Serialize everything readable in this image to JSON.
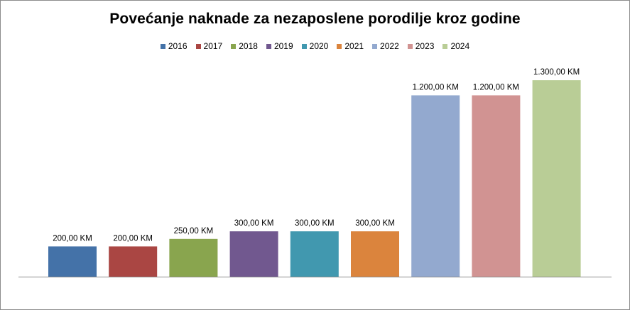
{
  "chart_data": {
    "type": "bar",
    "title": "Povećanje naknade za nezaposlene porodilje kroz godine",
    "xlabel": "",
    "ylabel": "",
    "ylim": [
      0,
      1400
    ],
    "grid": false,
    "legend_position": "top",
    "categories": [
      "2016",
      "2017",
      "2018",
      "2019",
      "2020",
      "2021",
      "2022",
      "2023",
      "2024"
    ],
    "values": [
      200,
      200,
      250,
      300,
      300,
      300,
      1200,
      1200,
      1300
    ],
    "data_labels": [
      "200,00 KM",
      "200,00 KM",
      "250,00 KM",
      "300,00 KM",
      "300,00 KM",
      "300,00 KM",
      "1.200,00 KM",
      "1.200,00 KM",
      "1.300,00 KM"
    ],
    "colors": [
      "#4472a8",
      "#aa4643",
      "#89a54e",
      "#71588f",
      "#4198af",
      "#db843d",
      "#93a9cf",
      "#d19392",
      "#b9cd96"
    ]
  }
}
